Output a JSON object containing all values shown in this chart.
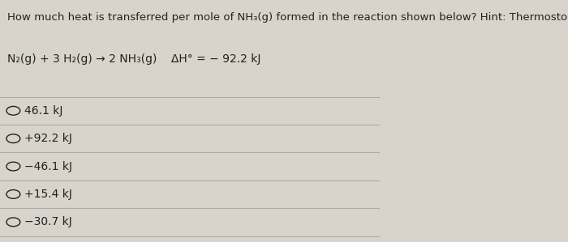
{
  "background_color": "#d8d4cc",
  "title_text": "How much heat is transferred per mole of NH₃(g) formed in the reaction shown below? Hint: Thermostoichiometry.",
  "reaction_line": "N₂(g) + 3 H₂(g) → 2 NH₃(g)    ΔH° = − 92.2 kJ",
  "choices": [
    "46.1 kJ",
    "+92.2 kJ",
    "−46.1 kJ",
    "+15.4 kJ",
    "−30.7 kJ"
  ],
  "title_fontsize": 9.5,
  "reaction_fontsize": 10,
  "choice_fontsize": 10,
  "line_color": "#aaaaaa",
  "text_color": "#222222"
}
